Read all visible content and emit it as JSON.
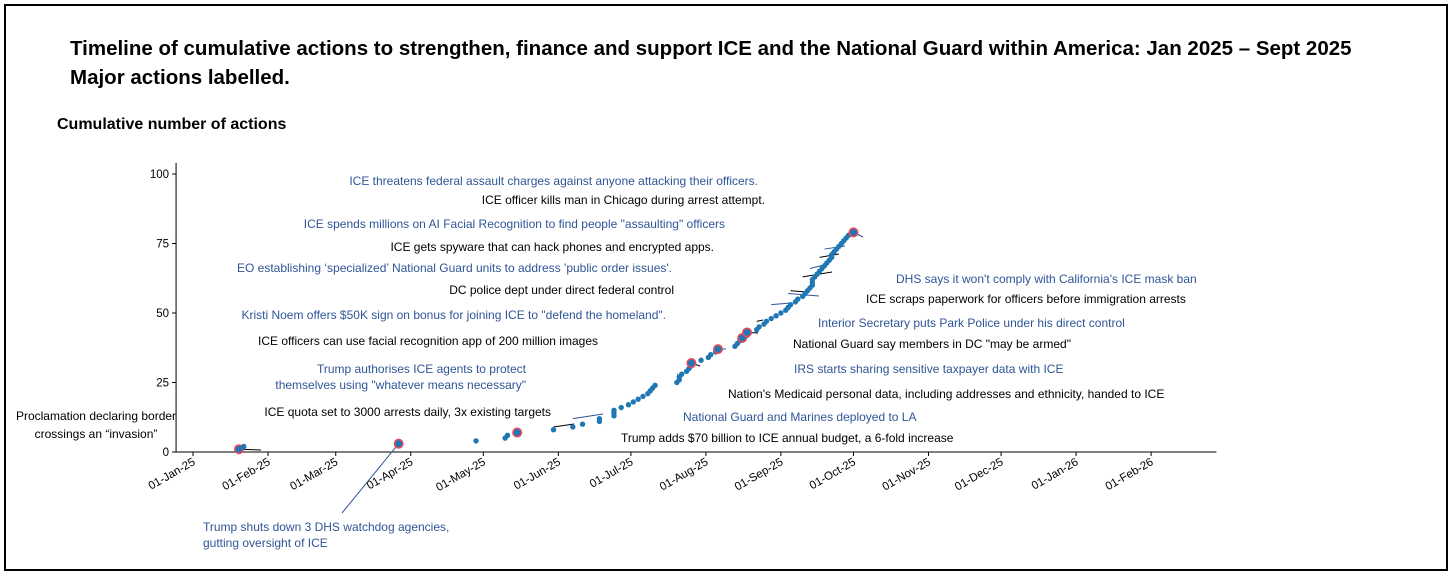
{
  "titles": {
    "line1": "Timeline of cumulative actions to strengthen, finance and support ICE and the National Guard within America: Jan 2025 – Sept 2025",
    "line2": "Major actions labelled."
  },
  "colors": {
    "blue_text": "#2f5597",
    "black_text": "#000000",
    "point_fill": "#1f77b4",
    "highlight_ring": "#e8495a"
  },
  "chart_data": {
    "type": "scatter",
    "title": "Timeline of cumulative actions to strengthen, finance and support ICE and the National Guard within America: Jan 2025 – Sept 2025",
    "subtitle": "Major actions labelled.",
    "xlabel": "",
    "ylabel": "Cumulative number of actions",
    "xlim": [
      "2024-12-25",
      "2026-02-28"
    ],
    "ylim": [
      0,
      104
    ],
    "yticks": [
      0,
      25,
      50,
      75,
      100
    ],
    "xticks": [
      "2025-01-01",
      "2025-02-01",
      "2025-03-01",
      "2025-04-01",
      "2025-05-01",
      "2025-06-01",
      "2025-07-01",
      "2025-08-01",
      "2025-09-01",
      "2025-10-01",
      "2025-11-01",
      "2025-12-01",
      "2026-01-01",
      "2026-02-01"
    ],
    "xtick_labels": [
      "01-Jan-25",
      "01-Feb-25",
      "01-Mar-25",
      "01-Apr-25",
      "01-May-25",
      "01-Jun-25",
      "01-Jul-25",
      "01-Aug-25",
      "01-Sep-25",
      "01-Oct-25",
      "01-Nov-25",
      "01-Dec-25",
      "01-Jan-26",
      "01-Feb-26"
    ],
    "grid": false,
    "points": [
      {
        "date": "2025-01-20",
        "y": 1
      },
      {
        "date": "2025-01-22",
        "y": 2
      },
      {
        "date": "2025-03-27",
        "y": 3
      },
      {
        "date": "2025-04-28",
        "y": 4
      },
      {
        "date": "2025-05-10",
        "y": 5
      },
      {
        "date": "2025-05-11",
        "y": 6
      },
      {
        "date": "2025-05-15",
        "y": 7
      },
      {
        "date": "2025-05-30",
        "y": 8
      },
      {
        "date": "2025-06-07",
        "y": 9
      },
      {
        "date": "2025-06-11",
        "y": 10
      },
      {
        "date": "2025-06-18",
        "y": 11
      },
      {
        "date": "2025-06-18",
        "y": 12
      },
      {
        "date": "2025-06-24",
        "y": 13
      },
      {
        "date": "2025-06-24",
        "y": 14
      },
      {
        "date": "2025-06-24",
        "y": 15
      },
      {
        "date": "2025-06-27",
        "y": 16
      },
      {
        "date": "2025-06-30",
        "y": 17
      },
      {
        "date": "2025-07-02",
        "y": 18
      },
      {
        "date": "2025-07-04",
        "y": 19
      },
      {
        "date": "2025-07-06",
        "y": 20
      },
      {
        "date": "2025-07-08",
        "y": 21
      },
      {
        "date": "2025-07-09",
        "y": 22
      },
      {
        "date": "2025-07-10",
        "y": 23
      },
      {
        "date": "2025-07-11",
        "y": 24
      },
      {
        "date": "2025-07-20",
        "y": 25
      },
      {
        "date": "2025-07-21",
        "y": 26
      },
      {
        "date": "2025-07-21",
        "y": 27
      },
      {
        "date": "2025-07-22",
        "y": 28
      },
      {
        "date": "2025-07-24",
        "y": 29
      },
      {
        "date": "2025-07-25",
        "y": 30
      },
      {
        "date": "2025-07-26",
        "y": 31
      },
      {
        "date": "2025-07-26",
        "y": 32
      },
      {
        "date": "2025-07-30",
        "y": 33
      },
      {
        "date": "2025-08-02",
        "y": 34
      },
      {
        "date": "2025-08-03",
        "y": 35
      },
      {
        "date": "2025-08-05",
        "y": 36
      },
      {
        "date": "2025-08-06",
        "y": 37
      },
      {
        "date": "2025-08-13",
        "y": 38
      },
      {
        "date": "2025-08-14",
        "y": 39
      },
      {
        "date": "2025-08-15",
        "y": 40
      },
      {
        "date": "2025-08-16",
        "y": 41
      },
      {
        "date": "2025-08-18",
        "y": 42
      },
      {
        "date": "2025-08-18",
        "y": 43
      },
      {
        "date": "2025-08-22",
        "y": 44
      },
      {
        "date": "2025-08-23",
        "y": 45
      },
      {
        "date": "2025-08-25",
        "y": 46
      },
      {
        "date": "2025-08-26",
        "y": 47
      },
      {
        "date": "2025-08-28",
        "y": 48
      },
      {
        "date": "2025-08-30",
        "y": 49
      },
      {
        "date": "2025-09-01",
        "y": 50
      },
      {
        "date": "2025-09-03",
        "y": 51
      },
      {
        "date": "2025-09-04",
        "y": 52
      },
      {
        "date": "2025-09-05",
        "y": 53
      },
      {
        "date": "2025-09-07",
        "y": 54
      },
      {
        "date": "2025-09-08",
        "y": 55
      },
      {
        "date": "2025-09-10",
        "y": 56
      },
      {
        "date": "2025-09-11",
        "y": 57
      },
      {
        "date": "2025-09-12",
        "y": 58
      },
      {
        "date": "2025-09-13",
        "y": 59
      },
      {
        "date": "2025-09-14",
        "y": 60
      },
      {
        "date": "2025-09-14",
        "y": 61
      },
      {
        "date": "2025-09-14",
        "y": 62
      },
      {
        "date": "2025-09-15",
        "y": 63
      },
      {
        "date": "2025-09-16",
        "y": 64
      },
      {
        "date": "2025-09-17",
        "y": 65
      },
      {
        "date": "2025-09-18",
        "y": 66
      },
      {
        "date": "2025-09-19",
        "y": 67
      },
      {
        "date": "2025-09-20",
        "y": 68
      },
      {
        "date": "2025-09-21",
        "y": 69
      },
      {
        "date": "2025-09-22",
        "y": 70
      },
      {
        "date": "2025-09-22",
        "y": 71
      },
      {
        "date": "2025-09-23",
        "y": 72
      },
      {
        "date": "2025-09-24",
        "y": 73
      },
      {
        "date": "2025-09-25",
        "y": 74
      },
      {
        "date": "2025-09-26",
        "y": 75
      },
      {
        "date": "2025-09-27",
        "y": 76
      },
      {
        "date": "2025-09-28",
        "y": 77
      },
      {
        "date": "2025-09-29",
        "y": 78
      },
      {
        "date": "2025-10-01",
        "y": 79
      }
    ],
    "annotations": [
      {
        "text": "Proclamation declaring border",
        "text2": "crossings an “invasion”",
        "date": "2025-01-20",
        "y": 1,
        "color": "black",
        "size": 14,
        "anchor": "middle"
      },
      {
        "text": "Trump shuts down 3 DHS watchdog agencies,",
        "text2": "gutting oversight of ICE",
        "date": "2025-03-27",
        "y": 3,
        "color": "blue",
        "size": 12,
        "anchor": "start"
      },
      {
        "text": "Trump adds $70 billion to ICE annual budget, a 6-fold increase",
        "date": "2025-05-15",
        "y": 7,
        "color": "black",
        "size": 14,
        "anchor": "start"
      },
      {
        "text": "ICE quota set to 3000 arrests daily, 3x existing targets",
        "date": "2025-05-30",
        "y": 9,
        "color": "black",
        "size": 12,
        "anchor": "end"
      },
      {
        "text": "National Guard and Marines deployed to LA",
        "date": "2025-06-07",
        "y": 12,
        "color": "blue",
        "size": 12,
        "anchor": "start"
      },
      {
        "text": "Trump authorises ICE agents to protect",
        "text2": "themselves using \"whatever means necessary\"",
        "date": "2025-07-20",
        "y": 28,
        "color": "blue",
        "size": 12,
        "anchor": "end"
      },
      {
        "text": "ICE officers can use facial recognition app of 200 million images",
        "date": "2025-07-25",
        "y": 31,
        "color": "black",
        "size": 12,
        "anchor": "end"
      },
      {
        "text": "Nation's Medicaid personal data, including addresses and ethnicity, handed to ICE",
        "date": "2025-07-26",
        "y": 32,
        "color": "black",
        "size": 12,
        "anchor": "start"
      },
      {
        "text": "Kristi Noem offers $50K sign on bonus for joining ICE to \"defend the homeland\".",
        "date": "2025-08-06",
        "y": 37,
        "color": "blue",
        "size": 12,
        "anchor": "end"
      },
      {
        "text": "IRS starts sharing sensitive taxpayer data with ICE",
        "date": "2025-08-16",
        "y": 41,
        "color": "blue",
        "size": 12,
        "anchor": "start"
      },
      {
        "text": "DC police dept under direct federal control",
        "date": "2025-08-18",
        "y": 43,
        "color": "black",
        "size": 12,
        "anchor": "end"
      },
      {
        "text": "National Guard say members in DC \"may be armed\"",
        "date": "2025-08-22",
        "y": 47,
        "color": "black",
        "size": 12,
        "anchor": "start"
      },
      {
        "text": "EO establishing ‘specialized’ National Guard units to address 'public order issues'.",
        "date": "2025-08-28",
        "y": 53,
        "color": "blue",
        "size": 12,
        "anchor": "end"
      },
      {
        "text": "Interior Secretary puts Park Police under his direct control",
        "date": "2025-09-04",
        "y": 57,
        "color": "blue",
        "size": 12,
        "anchor": "start"
      },
      {
        "text": "ICE gets spyware that can hack phones and encrypted apps.",
        "date": "2025-09-05",
        "y": 58,
        "color": "black",
        "size": 12,
        "anchor": "end"
      },
      {
        "text": "ICE scraps paperwork for officers before immigration arrests",
        "date": "2025-09-10",
        "y": 63,
        "color": "black",
        "size": 12,
        "anchor": "start"
      },
      {
        "text": "ICE spends millions on AI Facial Recognition to find people \"assaulting\" officers",
        "date": "2025-09-13",
        "y": 66,
        "color": "blue",
        "size": 12,
        "anchor": "end"
      },
      {
        "text": "ICE officer kills man in Chicago during arrest attempt.",
        "date": "2025-09-17",
        "y": 70,
        "color": "black",
        "size": 12,
        "anchor": "end"
      },
      {
        "text": "ICE threatens federal assault charges against anyone attacking their officers.",
        "date": "2025-09-19",
        "y": 73,
        "color": "blue",
        "size": 12,
        "anchor": "end"
      },
      {
        "text": "DHS says it won't comply with California's ICE mask ban",
        "date": "2025-10-01",
        "y": 79,
        "color": "blue",
        "size": 12,
        "anchor": "start"
      }
    ]
  }
}
